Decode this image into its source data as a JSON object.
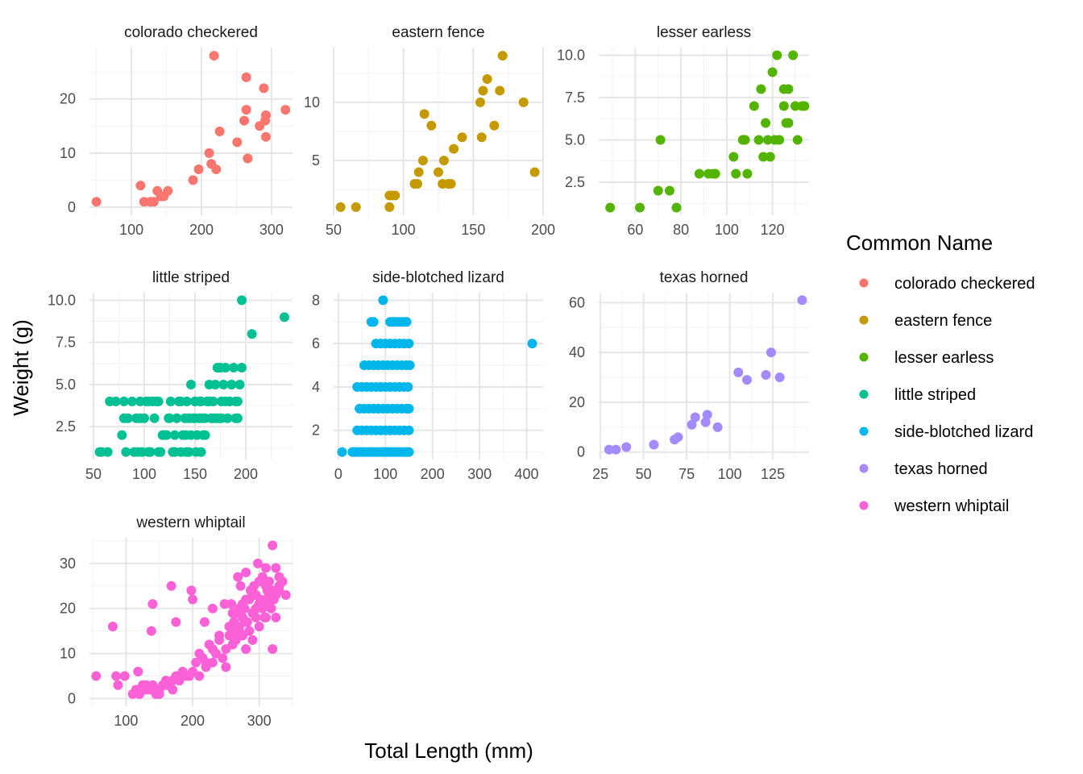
{
  "chart_data": {
    "type": "scatter",
    "layout": "facet_wrap",
    "xlabel": "Total Length (mm)",
    "ylabel": "Weight (g)",
    "grid": true,
    "legend": {
      "title": "Common Name",
      "position": "right",
      "items": [
        {
          "label": "colorado checkered",
          "color": "#F8766D"
        },
        {
          "label": "eastern fence",
          "color": "#C49A00"
        },
        {
          "label": "lesser earless",
          "color": "#53B400"
        },
        {
          "label": "little striped",
          "color": "#00C094"
        },
        {
          "label": "side-blotched lizard",
          "color": "#00B6EB"
        },
        {
          "label": "texas horned",
          "color": "#A58AFF"
        },
        {
          "label": "western whiptail",
          "color": "#FB61D7"
        }
      ]
    },
    "facets": [
      {
        "name": "colorado checkered",
        "color": "#F8766D",
        "xlim": [
          40,
          330
        ],
        "ylim": [
          -1.5,
          29.5
        ],
        "xticks": [
          100,
          200,
          300
        ],
        "yticks": [
          0,
          10,
          20
        ],
        "x": [
          50,
          113,
          118,
          127,
          132,
          137,
          142,
          146,
          152,
          188,
          196,
          211,
          214,
          218,
          221,
          226,
          251,
          261,
          264,
          266,
          264,
          283,
          289,
          291,
          292,
          292,
          320
        ],
        "y": [
          1,
          4,
          1,
          1,
          1,
          3,
          2,
          2,
          3,
          5,
          7,
          10,
          8,
          28,
          7,
          14,
          12,
          16,
          24,
          9,
          18,
          15,
          22,
          16,
          17,
          13,
          18
        ]
      },
      {
        "name": "eastern fence",
        "color": "#C49A00",
        "xlim": [
          50,
          200
        ],
        "ylim": [
          0.3,
          14.7
        ],
        "xticks": [
          50,
          100,
          150,
          200
        ],
        "yticks": [
          5,
          10
        ],
        "x": [
          55,
          66,
          90,
          90,
          92,
          94,
          108,
          110,
          111,
          114,
          115,
          120,
          125,
          128,
          129,
          132,
          134,
          136,
          142,
          155,
          156,
          157,
          160,
          165,
          169,
          171,
          186,
          194
        ],
        "y": [
          1,
          1,
          1,
          2,
          2,
          2,
          3,
          3,
          4,
          5,
          9,
          8,
          4,
          3,
          5,
          3,
          3,
          6,
          7,
          10,
          7,
          11,
          12,
          8,
          11,
          14,
          10,
          4
        ],
        "note": ""
      },
      {
        "name": "lesser earless",
        "color": "#53B400",
        "xlim": [
          44,
          136
        ],
        "ylim": [
          0.55,
          10.45
        ],
        "xticks": [
          60,
          80,
          100,
          120
        ],
        "yticks": [
          2.5,
          5.0,
          7.5,
          10.0
        ],
        "x": [
          49,
          62,
          70,
          71,
          75,
          78,
          88,
          92,
          94,
          95,
          103,
          104,
          107,
          108,
          109,
          112,
          114,
          115,
          116,
          117,
          118,
          119,
          120,
          121,
          122,
          123,
          125,
          125,
          126,
          127,
          127,
          129,
          130,
          131,
          133,
          134
        ],
        "y": [
          1,
          1,
          2,
          5,
          2,
          1,
          3,
          3,
          3,
          3,
          4,
          3,
          5,
          5,
          3,
          7,
          5,
          8,
          4,
          6,
          5,
          4,
          9,
          5,
          10,
          5,
          7,
          8,
          6,
          6,
          8,
          10,
          7,
          5,
          7,
          7
        ]
      },
      {
        "name": "little striped",
        "color": "#00C094",
        "xlim": [
          46,
          246
        ],
        "ylim": [
          0.55,
          10.45
        ],
        "xticks": [
          50,
          100,
          150,
          200
        ],
        "yticks": [
          2.5,
          5.0,
          7.5,
          10.0
        ],
        "x": [
          56,
          66,
          64,
          72,
          78,
          80,
          82,
          84,
          88,
          92,
          96,
          98,
          100,
          102,
          106,
          110,
          114,
          116,
          120,
          124,
          126,
          128,
          130,
          132,
          134,
          136,
          138,
          140,
          142,
          144,
          146,
          148,
          150,
          152,
          154,
          156,
          158,
          160,
          162,
          164,
          166,
          168,
          170,
          172,
          174,
          176,
          178,
          180,
          182,
          184,
          186,
          188,
          190,
          192,
          194,
          196,
          206,
          238,
          80,
          94,
          108,
          118,
          125,
          136,
          141,
          146,
          150,
          157,
          164,
          171,
          175,
          180,
          186,
          192,
          96,
          104,
          112,
          122,
          130,
          138,
          144,
          150,
          155,
          160,
          168,
          176,
          184,
          190,
          196,
          58,
          90,
          104,
          114,
          130,
          141,
          151,
          156
        ],
        "y": [
          1,
          4,
          1,
          4,
          2,
          4,
          1,
          3,
          4,
          3,
          4,
          1,
          3,
          4,
          1,
          3,
          4,
          1,
          2,
          3,
          4,
          1,
          2,
          3,
          4,
          1,
          2,
          3,
          4,
          1,
          2,
          3,
          4,
          2,
          3,
          4,
          2,
          3,
          4,
          5,
          3,
          4,
          5,
          6,
          3,
          4,
          5,
          6,
          3,
          4,
          5,
          6,
          3,
          4,
          5,
          6,
          8,
          9,
          3,
          1,
          4,
          2,
          3,
          4,
          2,
          5,
          4,
          3,
          4,
          3,
          6,
          4,
          5,
          3,
          3,
          4,
          4,
          2,
          1,
          2,
          3,
          3,
          4,
          2,
          3,
          3,
          4,
          4,
          10,
          1,
          1,
          1,
          1,
          1,
          1,
          1,
          1
        ]
      },
      {
        "name": "side-blotched lizard",
        "color": "#00B6EB",
        "xlim": [
          -10,
          435
        ],
        "ylim": [
          0.65,
          8.35
        ],
        "xticks": [
          0,
          100,
          200,
          300,
          400
        ],
        "yticks": [
          2,
          4,
          6,
          8
        ],
        "x": [
          8,
          30,
          35,
          40,
          45,
          50,
          55,
          60,
          65,
          70,
          75,
          80,
          85,
          90,
          95,
          100,
          105,
          110,
          115,
          120,
          125,
          130,
          135,
          140,
          145,
          150,
          40,
          50,
          60,
          70,
          80,
          90,
          100,
          110,
          120,
          130,
          140,
          150,
          45,
          55,
          65,
          75,
          85,
          95,
          105,
          115,
          125,
          135,
          145,
          150,
          40,
          50,
          60,
          70,
          80,
          90,
          100,
          110,
          120,
          130,
          140,
          148,
          55,
          65,
          75,
          85,
          95,
          105,
          115,
          125,
          135,
          145,
          152,
          80,
          90,
          100,
          110,
          120,
          130,
          140,
          150,
          70,
          110,
          115,
          120,
          125,
          130,
          135,
          140,
          145,
          75,
          95,
          412
        ],
        "y": [
          1,
          1,
          1,
          1,
          1,
          1,
          1,
          1,
          1,
          1,
          1,
          1,
          1,
          1,
          1,
          1,
          1,
          1,
          1,
          1,
          1,
          1,
          1,
          1,
          1,
          1,
          2,
          2,
          2,
          2,
          2,
          2,
          2,
          2,
          2,
          2,
          2,
          2,
          3,
          3,
          3,
          3,
          3,
          3,
          3,
          3,
          3,
          3,
          3,
          3,
          4,
          4,
          4,
          4,
          4,
          4,
          4,
          4,
          4,
          4,
          4,
          4,
          5,
          5,
          5,
          5,
          5,
          5,
          5,
          5,
          5,
          5,
          5,
          6,
          6,
          6,
          6,
          6,
          6,
          6,
          6,
          7,
          7,
          7,
          7,
          7,
          7,
          7,
          7,
          7,
          7,
          8,
          6
        ]
      },
      {
        "name": "texas horned",
        "color": "#A58AFF",
        "xlim": [
          24,
          146
        ],
        "ylim": [
          -3,
          64
        ],
        "xticks": [
          25,
          50,
          75,
          100,
          125
        ],
        "yticks": [
          0,
          20,
          40,
          60
        ],
        "x": [
          30,
          34,
          40,
          56,
          68,
          70,
          78,
          80,
          86,
          87,
          93,
          105,
          110,
          121,
          124,
          129,
          142
        ],
        "y": [
          1,
          1,
          2,
          3,
          5,
          6,
          11,
          14,
          12,
          15,
          10,
          32,
          29,
          31,
          40,
          30,
          61
        ]
      },
      {
        "name": "western whiptail",
        "color": "#FB61D7",
        "xlim": [
          45,
          350
        ],
        "ylim": [
          -1.7,
          35.7
        ],
        "xticks": [
          100,
          200,
          300
        ],
        "yticks": [
          0,
          10,
          20,
          30
        ],
        "x": [
          55,
          80,
          85,
          88,
          98,
          118,
          120,
          125,
          130,
          138,
          140,
          168,
          175,
          198,
          200,
          218,
          225,
          230,
          240,
          248,
          255,
          258,
          262,
          265,
          268,
          270,
          272,
          275,
          278,
          280,
          282,
          285,
          287,
          290,
          292,
          295,
          298,
          300,
          302,
          305,
          308,
          310,
          312,
          315,
          318,
          320,
          322,
          325,
          328,
          330,
          335,
          340,
          110,
          115,
          120,
          125,
          130,
          135,
          140,
          145,
          150,
          155,
          160,
          165,
          170,
          175,
          180,
          185,
          190,
          195,
          200,
          205,
          210,
          215,
          220,
          225,
          230,
          235,
          240,
          245,
          250,
          255,
          260,
          265,
          270,
          275,
          280,
          285,
          290,
          295,
          300,
          305,
          310,
          315,
          320,
          325,
          330,
          140,
          150,
          160,
          170,
          180,
          210,
          220,
          230,
          250,
          260,
          270,
          280,
          290,
          300,
          310,
          320,
          330,
          265,
          275,
          285,
          295,
          305,
          315,
          325,
          260,
          270,
          280,
          290,
          300,
          310,
          320
        ],
        "y": [
          5,
          16,
          5,
          3,
          5,
          6,
          1,
          3,
          2,
          15,
          21,
          25,
          17,
          24,
          22,
          17,
          12,
          20,
          14,
          21,
          16,
          21,
          17,
          15,
          27,
          14,
          25,
          18,
          20,
          28,
          17,
          22,
          24,
          19,
          25,
          20,
          30,
          21,
          22,
          27,
          18,
          29,
          24,
          26,
          20,
          34,
          22,
          29,
          24,
          27,
          26,
          23,
          1,
          2,
          1,
          2,
          3,
          2,
          3,
          1,
          2,
          3,
          4,
          3,
          4,
          5,
          4,
          6,
          5,
          5,
          6,
          8,
          10,
          9,
          7,
          12,
          8,
          10,
          13,
          9,
          11,
          14,
          12,
          13,
          16,
          14,
          17,
          15,
          19,
          18,
          21,
          20,
          22,
          21,
          24,
          23,
          25,
          2,
          1,
          3,
          2,
          4,
          5,
          8,
          11,
          7,
          12,
          15,
          11,
          13,
          16,
          18,
          11,
          24,
          19,
          21,
          22,
          23,
          20,
          21,
          18,
          19,
          20,
          22,
          24,
          26,
          25,
          23
        ]
      }
    ]
  }
}
